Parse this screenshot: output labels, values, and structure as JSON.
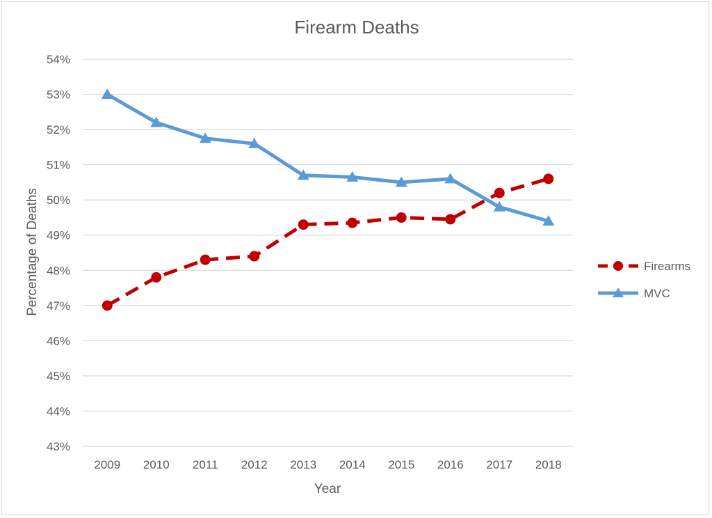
{
  "chart_data": {
    "type": "line",
    "title": "Firearm Deaths",
    "xlabel": "Year",
    "ylabel": "Percentage of Deaths",
    "categories": [
      "2009",
      "2010",
      "2011",
      "2012",
      "2013",
      "2014",
      "2015",
      "2016",
      "2017",
      "2018"
    ],
    "yticks": [
      "43%",
      "44%",
      "45%",
      "46%",
      "47%",
      "48%",
      "49%",
      "50%",
      "51%",
      "52%",
      "53%",
      "54%"
    ],
    "ylim": [
      43,
      54
    ],
    "grid": true,
    "legend_position": "right",
    "series": [
      {
        "name": "Firearms",
        "values": [
          47.0,
          47.8,
          48.3,
          48.4,
          49.3,
          49.35,
          49.5,
          49.45,
          50.2,
          50.6
        ],
        "color": "#c00000",
        "marker": "circle",
        "dash": true
      },
      {
        "name": "MVC",
        "values": [
          53.0,
          52.2,
          51.75,
          51.6,
          50.7,
          50.65,
          50.5,
          50.6,
          49.8,
          49.4
        ],
        "color": "#5b9bd5",
        "marker": "triangle",
        "dash": false
      }
    ]
  }
}
